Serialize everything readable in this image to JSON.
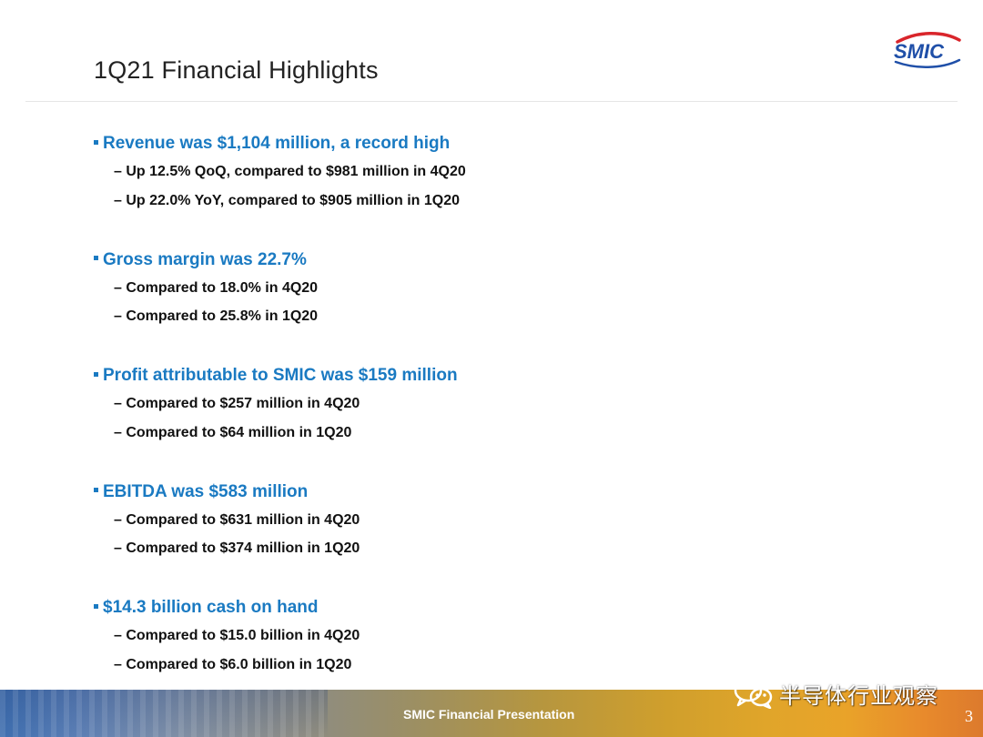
{
  "title": "1Q21 Financial Highlights",
  "logo": {
    "text": "SMIC",
    "color": "#1f4fa8",
    "accent": "#d9252b"
  },
  "sections": [
    {
      "heading": "Revenue was $1,104 million, a record high",
      "items": [
        "– Up 12.5% QoQ, compared to $981 million in 4Q20",
        "– Up 22.0% YoY, compared to $905 million in 1Q20"
      ]
    },
    {
      "heading": "Gross margin was 22.7%",
      "items": [
        "– Compared to 18.0% in 4Q20",
        "– Compared to 25.8% in 1Q20"
      ]
    },
    {
      "heading": "Profit attributable to SMIC was $159 million",
      "items": [
        "– Compared to $257 million in 4Q20",
        "– Compared to $64 million in 1Q20"
      ]
    },
    {
      "heading": "EBITDA was $583 million",
      "items": [
        "– Compared to $631 million in 4Q20",
        "– Compared to $374 million in 1Q20"
      ]
    },
    {
      "heading": "$14.3 billion cash on hand",
      "items": [
        "– Compared to $15.0 billion in 4Q20",
        "– Compared to $6.0 billion in 1Q20"
      ]
    }
  ],
  "footer": {
    "text": "SMIC Financial Presentation",
    "page_number": "3"
  },
  "watermark": {
    "icon": "wechat-icon",
    "text": "半导体行业观察"
  },
  "colors": {
    "heading": "#1a7ac2",
    "body": "#111111"
  }
}
